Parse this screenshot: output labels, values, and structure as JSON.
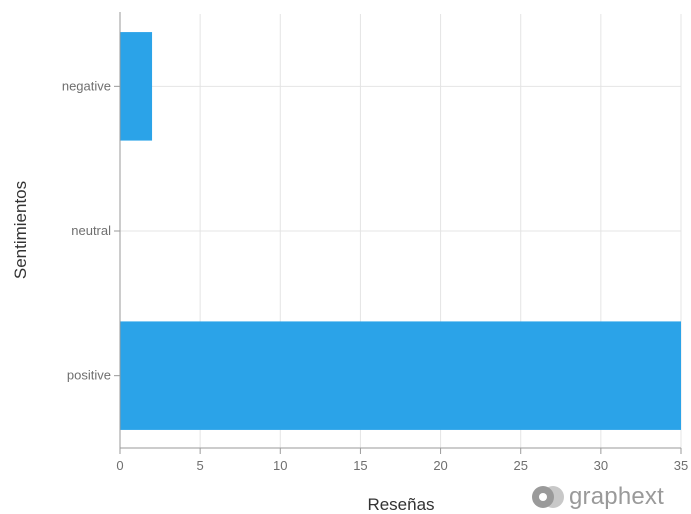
{
  "chart_data": {
    "type": "bar",
    "orientation": "horizontal",
    "categories": [
      "negative",
      "neutral",
      "positive"
    ],
    "values": [
      2,
      0,
      35
    ],
    "xlabel": "Reseñas",
    "ylabel": "Sentimientos",
    "xlim": [
      0,
      35
    ],
    "xticks": [
      0,
      5,
      10,
      15,
      20,
      25,
      30,
      35
    ],
    "grid": true,
    "bar_color": "#2ba3e8"
  },
  "branding": {
    "logo_text": "graphext",
    "logo_icon": "graphext-logo-icon",
    "logo_color": "#9a9a9a"
  }
}
